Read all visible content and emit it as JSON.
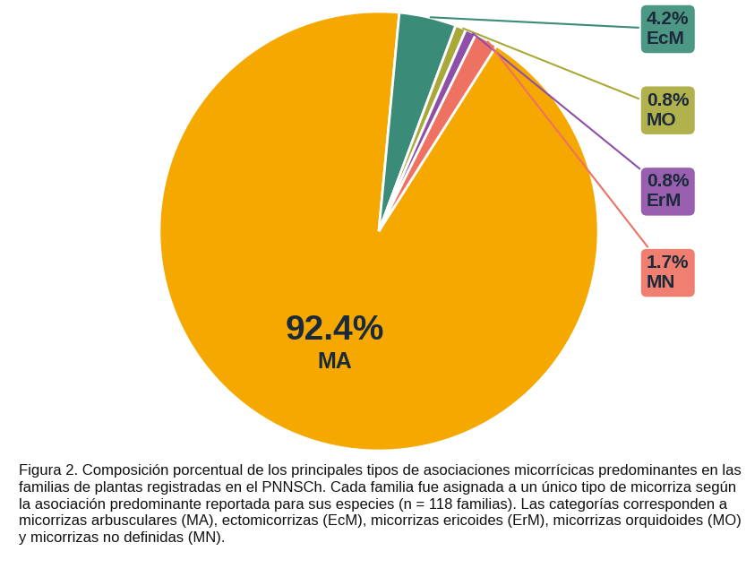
{
  "chart_data": {
    "type": "pie",
    "categories": [
      "MA",
      "EcM",
      "MO",
      "ErM",
      "MN"
    ],
    "values": [
      92.4,
      4.2,
      0.8,
      0.8,
      1.7
    ],
    "value_labels": [
      "92.4%",
      "4.2%",
      "0.8%",
      "0.8%",
      "1.7%"
    ],
    "colors": [
      "#f5a800",
      "#3a8c78",
      "#a9a93a",
      "#8e4fa8",
      "#ee7262"
    ],
    "data_labels": true,
    "caption": "Figura 2. Composición porcentual de los principales tipos de asociaciones micorrícicas predominantes en las familias de plantas registradas en el PNNSCh. Cada familia fue asignada a un único tipo de micorriza según la asociación predominante reportada para sus especies (n = 118 familias). Las categorías corresponden a micorrizas arbusculares (MA), ectomicorrizas (EcM), micorrizas ericoides (ErM), micorrizas orquidoides (MO) y micorrizas no definidas (MN)."
  }
}
